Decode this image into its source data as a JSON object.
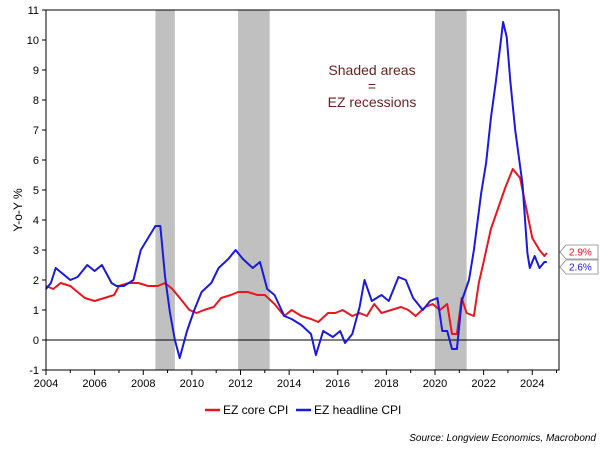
{
  "chart_data": {
    "type": "line",
    "ylabel": "Y-o-Y %",
    "annotation": [
      "Shaded areas",
      "=",
      "EZ recessions"
    ],
    "source": "Source: Longview Economics, Macrobond",
    "xlim": [
      2004,
      2025.1
    ],
    "ylim": [
      -1,
      11
    ],
    "x_ticks": [
      2004,
      2006,
      2008,
      2010,
      2012,
      2014,
      2016,
      2018,
      2020,
      2022,
      2024
    ],
    "x_tick_labels": [
      "2004",
      "2006",
      "2008",
      "2010",
      "2012",
      "2014",
      "2016",
      "2018",
      "2020",
      "2022",
      "2024"
    ],
    "y_ticks": [
      -1,
      0,
      1,
      2,
      3,
      4,
      5,
      6,
      7,
      8,
      9,
      10,
      11
    ],
    "y_tick_labels": [
      "-1",
      "0",
      "1",
      "2",
      "3",
      "4",
      "5",
      "6",
      "7",
      "8",
      "9",
      "10",
      "11"
    ],
    "recessions": [
      [
        2008.5,
        2009.3
      ],
      [
        2011.9,
        2013.2
      ],
      [
        2020.0,
        2021.3
      ]
    ],
    "legend_position": "bottom-center",
    "grid": false,
    "series": [
      {
        "name": "EZ core CPI",
        "color": "#e8161e",
        "end_label": "2.9%",
        "points": [
          [
            2004.0,
            1.8
          ],
          [
            2004.3,
            1.7
          ],
          [
            2004.6,
            1.9
          ],
          [
            2005.0,
            1.8
          ],
          [
            2005.3,
            1.6
          ],
          [
            2005.6,
            1.4
          ],
          [
            2006.0,
            1.3
          ],
          [
            2006.4,
            1.4
          ],
          [
            2006.8,
            1.5
          ],
          [
            2007.0,
            1.8
          ],
          [
            2007.4,
            1.9
          ],
          [
            2007.8,
            1.9
          ],
          [
            2008.2,
            1.8
          ],
          [
            2008.6,
            1.8
          ],
          [
            2008.9,
            1.9
          ],
          [
            2009.2,
            1.7
          ],
          [
            2009.6,
            1.3
          ],
          [
            2009.9,
            1.0
          ],
          [
            2010.2,
            0.9
          ],
          [
            2010.5,
            1.0
          ],
          [
            2010.9,
            1.1
          ],
          [
            2011.2,
            1.4
          ],
          [
            2011.6,
            1.5
          ],
          [
            2011.9,
            1.6
          ],
          [
            2012.3,
            1.6
          ],
          [
            2012.7,
            1.5
          ],
          [
            2013.0,
            1.5
          ],
          [
            2013.4,
            1.2
          ],
          [
            2013.8,
            0.8
          ],
          [
            2014.1,
            1.0
          ],
          [
            2014.5,
            0.8
          ],
          [
            2014.9,
            0.7
          ],
          [
            2015.2,
            0.6
          ],
          [
            2015.6,
            0.9
          ],
          [
            2015.9,
            0.9
          ],
          [
            2016.2,
            1.0
          ],
          [
            2016.6,
            0.8
          ],
          [
            2016.9,
            0.9
          ],
          [
            2017.2,
            0.8
          ],
          [
            2017.5,
            1.2
          ],
          [
            2017.8,
            0.9
          ],
          [
            2018.2,
            1.0
          ],
          [
            2018.6,
            1.1
          ],
          [
            2018.9,
            1.0
          ],
          [
            2019.2,
            0.8
          ],
          [
            2019.6,
            1.1
          ],
          [
            2019.9,
            1.2
          ],
          [
            2020.2,
            1.0
          ],
          [
            2020.5,
            1.2
          ],
          [
            2020.7,
            0.2
          ],
          [
            2020.9,
            0.2
          ],
          [
            2021.1,
            1.4
          ],
          [
            2021.3,
            0.9
          ],
          [
            2021.6,
            0.8
          ],
          [
            2021.8,
            1.9
          ],
          [
            2022.0,
            2.6
          ],
          [
            2022.3,
            3.7
          ],
          [
            2022.6,
            4.4
          ],
          [
            2022.9,
            5.1
          ],
          [
            2023.2,
            5.7
          ],
          [
            2023.5,
            5.4
          ],
          [
            2023.8,
            4.2
          ],
          [
            2024.0,
            3.4
          ],
          [
            2024.3,
            3.0
          ],
          [
            2024.5,
            2.8
          ],
          [
            2024.6,
            2.9
          ]
        ]
      },
      {
        "name": "EZ headline CPI",
        "color": "#1a1adc",
        "end_label": "2.6%",
        "points": [
          [
            2004.0,
            1.7
          ],
          [
            2004.2,
            1.9
          ],
          [
            2004.4,
            2.4
          ],
          [
            2004.7,
            2.2
          ],
          [
            2005.0,
            2.0
          ],
          [
            2005.3,
            2.1
          ],
          [
            2005.7,
            2.5
          ],
          [
            2006.0,
            2.3
          ],
          [
            2006.3,
            2.5
          ],
          [
            2006.7,
            1.9
          ],
          [
            2006.9,
            1.8
          ],
          [
            2007.2,
            1.8
          ],
          [
            2007.6,
            2.0
          ],
          [
            2007.9,
            3.0
          ],
          [
            2008.2,
            3.4
          ],
          [
            2008.5,
            3.8
          ],
          [
            2008.7,
            3.8
          ],
          [
            2008.9,
            2.1
          ],
          [
            2009.1,
            0.9
          ],
          [
            2009.3,
            0.0
          ],
          [
            2009.5,
            -0.6
          ],
          [
            2009.8,
            0.3
          ],
          [
            2010.1,
            1.0
          ],
          [
            2010.4,
            1.6
          ],
          [
            2010.8,
            1.9
          ],
          [
            2011.1,
            2.4
          ],
          [
            2011.5,
            2.7
          ],
          [
            2011.8,
            3.0
          ],
          [
            2012.1,
            2.7
          ],
          [
            2012.5,
            2.4
          ],
          [
            2012.8,
            2.6
          ],
          [
            2013.1,
            1.7
          ],
          [
            2013.4,
            1.5
          ],
          [
            2013.8,
            0.8
          ],
          [
            2014.1,
            0.7
          ],
          [
            2014.5,
            0.5
          ],
          [
            2014.9,
            0.2
          ],
          [
            2015.1,
            -0.5
          ],
          [
            2015.4,
            0.3
          ],
          [
            2015.8,
            0.1
          ],
          [
            2016.1,
            0.3
          ],
          [
            2016.3,
            -0.1
          ],
          [
            2016.6,
            0.2
          ],
          [
            2016.9,
            1.1
          ],
          [
            2017.1,
            2.0
          ],
          [
            2017.4,
            1.3
          ],
          [
            2017.8,
            1.5
          ],
          [
            2018.1,
            1.3
          ],
          [
            2018.5,
            2.1
          ],
          [
            2018.8,
            2.0
          ],
          [
            2019.1,
            1.4
          ],
          [
            2019.5,
            1.0
          ],
          [
            2019.8,
            1.3
          ],
          [
            2020.1,
            1.4
          ],
          [
            2020.3,
            0.3
          ],
          [
            2020.5,
            0.3
          ],
          [
            2020.7,
            -0.3
          ],
          [
            2020.9,
            -0.3
          ],
          [
            2021.1,
            1.3
          ],
          [
            2021.4,
            2.0
          ],
          [
            2021.6,
            3.0
          ],
          [
            2021.9,
            4.9
          ],
          [
            2022.1,
            5.9
          ],
          [
            2022.3,
            7.4
          ],
          [
            2022.5,
            8.6
          ],
          [
            2022.7,
            9.9
          ],
          [
            2022.8,
            10.6
          ],
          [
            2022.95,
            10.1
          ],
          [
            2023.1,
            8.6
          ],
          [
            2023.3,
            7.0
          ],
          [
            2023.6,
            5.2
          ],
          [
            2023.8,
            2.9
          ],
          [
            2023.9,
            2.4
          ],
          [
            2024.1,
            2.8
          ],
          [
            2024.3,
            2.4
          ],
          [
            2024.5,
            2.6
          ],
          [
            2024.6,
            2.6
          ]
        ]
      }
    ]
  }
}
